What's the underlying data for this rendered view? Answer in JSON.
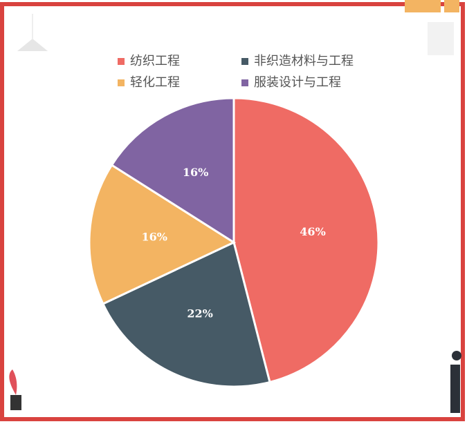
{
  "chart_data": {
    "type": "pie",
    "categories": [
      "纺织工程",
      "非织造材料与工程",
      "轻化工程",
      "服装设计与工程"
    ],
    "values": [
      46,
      22,
      16,
      16
    ],
    "value_labels": [
      "46%",
      "22%",
      "16%",
      "16%"
    ],
    "colors": [
      "#ef6b64",
      "#465a66",
      "#f3b462",
      "#8064a2"
    ],
    "legend": "top"
  }
}
